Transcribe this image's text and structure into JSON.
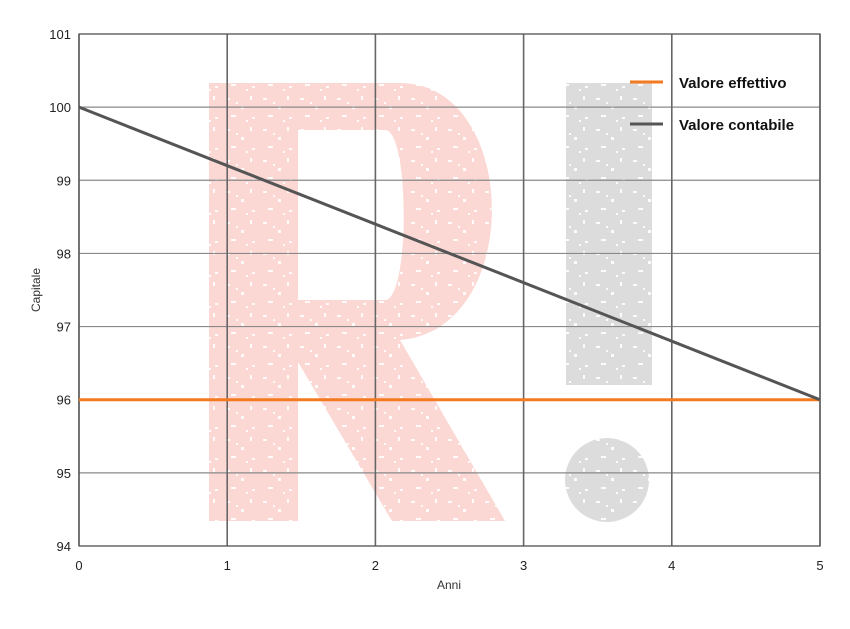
{
  "chart_data": {
    "type": "line",
    "xlabel": "Anni",
    "ylabel": "Capitale",
    "xlim": [
      0,
      5
    ],
    "ylim": [
      94,
      101
    ],
    "x_ticks": [
      0,
      1,
      2,
      3,
      4,
      5
    ],
    "y_ticks": [
      94,
      95,
      96,
      97,
      98,
      99,
      100,
      101
    ],
    "grid": true,
    "legend_position": "top-right",
    "series": [
      {
        "name": "Valore effettivo",
        "color": "#f47a20",
        "x": [
          0,
          5
        ],
        "y": [
          96,
          96
        ]
      },
      {
        "name": "Valore contabile",
        "color": "#555555",
        "x": [
          0,
          5
        ],
        "y": [
          100,
          96
        ]
      }
    ]
  },
  "watermark": {
    "text": "R!",
    "colors": {
      "letter": "#fbd8d4",
      "mark": "#dcdcdc"
    }
  }
}
